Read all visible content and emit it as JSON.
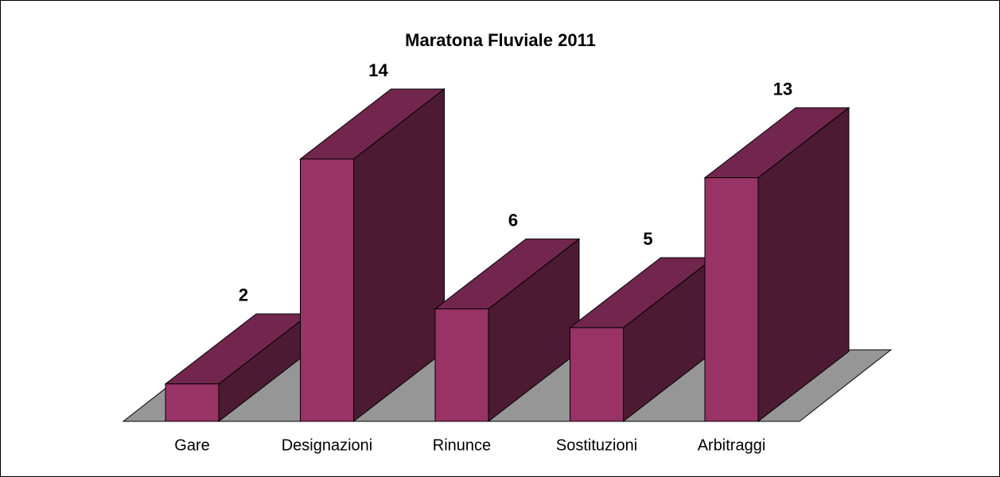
{
  "chart_data": {
    "type": "bar3d",
    "title": "Maratona Fluviale 2011",
    "categories": [
      "Gare",
      "Designazioni",
      "Rinunce",
      "Sostituzioni",
      "Arbitraggi"
    ],
    "values": [
      2,
      14,
      6,
      5,
      13
    ],
    "color": "#993366"
  }
}
